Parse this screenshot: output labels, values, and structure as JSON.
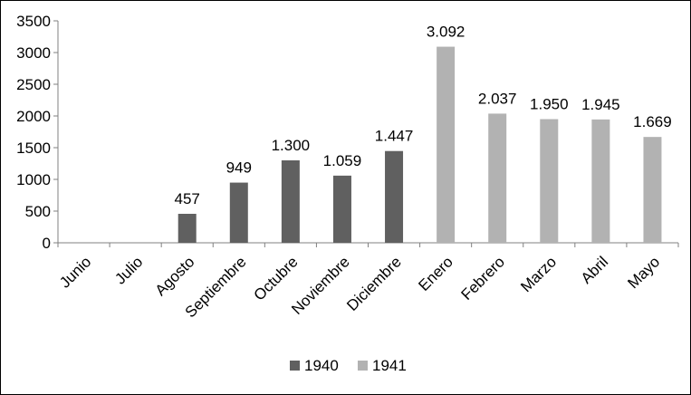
{
  "chart_data": {
    "type": "bar",
    "categories": [
      "Junio",
      "Julio",
      "Agosto",
      "Septiembre",
      "Octubre",
      "Noviembre",
      "Diciembre",
      "Enero",
      "Febrero",
      "Marzo",
      "Abril",
      "Mayo"
    ],
    "series": [
      {
        "name": "1940",
        "color": "#606060",
        "values": [
          null,
          null,
          457,
          949,
          1300,
          1059,
          1447,
          null,
          null,
          null,
          null,
          null
        ],
        "labels": [
          "",
          "",
          "457",
          "949",
          "1.300",
          "1.059",
          "1.447",
          "",
          "",
          "",
          "",
          ""
        ]
      },
      {
        "name": "1941",
        "color": "#b2b2b2",
        "values": [
          null,
          null,
          null,
          null,
          null,
          null,
          null,
          3092,
          2037,
          1950,
          1945,
          1669
        ],
        "labels": [
          "",
          "",
          "",
          "",
          "",
          "",
          "",
          "3.092",
          "2.037",
          "1.950",
          "1.945",
          "1.669"
        ]
      }
    ],
    "yticks": [
      "0",
      "500",
      "1000",
      "1500",
      "2000",
      "2500",
      "3000",
      "3500"
    ],
    "ylim": [
      0,
      3500
    ],
    "grid": false,
    "legend_position": "bottom",
    "title": "",
    "xlabel": "",
    "ylabel": ""
  }
}
